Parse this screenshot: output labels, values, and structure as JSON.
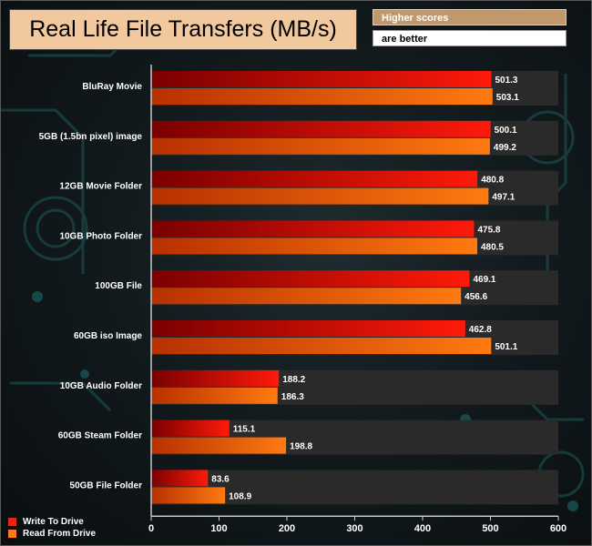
{
  "title": "Real Life File Transfers (MB/s)",
  "note": {
    "line1": "Higher scores",
    "line2": "are better"
  },
  "colors": {
    "write_dark": "#7a0000",
    "write_light": "#ff1a0a",
    "read_dark": "#b83000",
    "read_light": "#ff7a10",
    "track": "#2a2a2a",
    "axis": "#c8c8c8"
  },
  "legend": {
    "write": "Write To  Drive",
    "read": "Read From  Drive"
  },
  "chart_data": {
    "type": "bar",
    "orientation": "horizontal",
    "title": "Real Life File Transfers (MB/s)",
    "xlabel": "",
    "ylabel": "",
    "xlim": [
      0,
      600
    ],
    "ticks": [
      0,
      100,
      200,
      300,
      400,
      500,
      600
    ],
    "categories": [
      "BluRay Movie",
      "5GB (1.5bn pixel) image",
      "12GB Movie Folder",
      "10GB Photo Folder",
      "100GB File",
      "60GB iso Image",
      "10GB Audio Folder",
      "60GB Steam Folder",
      "50GB File Folder"
    ],
    "series": [
      {
        "name": "Write To  Drive",
        "values": [
          501.3,
          500.1,
          480.8,
          475.8,
          469.1,
          462.8,
          188.2,
          115.1,
          83.6
        ]
      },
      {
        "name": "Read From  Drive",
        "values": [
          503.1,
          499.2,
          497.1,
          480.5,
          456.6,
          501.1,
          186.3,
          198.8,
          108.9
        ]
      }
    ]
  }
}
